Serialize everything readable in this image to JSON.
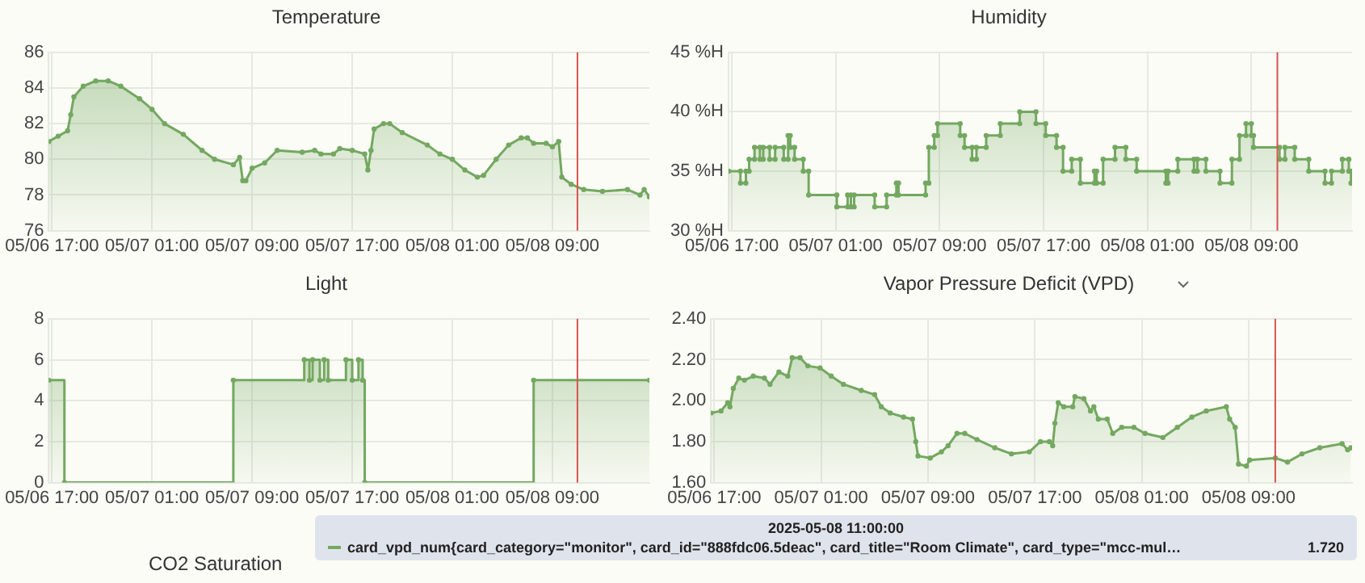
{
  "chart_data": [
    {
      "type": "area",
      "title": "Temperature",
      "grid": true,
      "marker": "circle",
      "xlim": [
        "2025-05-06T16:45",
        "2025-05-08T16:45"
      ],
      "xticks": [
        {
          "value": "2025-05-06T17:00",
          "label": "05/06 17:00"
        },
        {
          "value": "2025-05-07T01:00",
          "label": "05/07 01:00"
        },
        {
          "value": "2025-05-07T09:00",
          "label": "05/07 09:00"
        },
        {
          "value": "2025-05-07T17:00",
          "label": "05/07 17:00"
        },
        {
          "value": "2025-05-08T01:00",
          "label": "05/08 01:00"
        },
        {
          "value": "2025-05-08T09:00",
          "label": "05/08 09:00"
        }
      ],
      "ylim": [
        76,
        86
      ],
      "yticks": [
        76,
        78,
        80,
        82,
        84,
        86
      ],
      "ref_lines": [
        {
          "axis": "x",
          "value": "2025-05-08T11:00",
          "color": "#d9534f"
        }
      ],
      "series": [
        {
          "color": "#73a860",
          "x": [
            "2025-05-06T16:45",
            "2025-05-06T17:30",
            "2025-05-06T18:15",
            "2025-05-06T18:30",
            "2025-05-06T18:45",
            "2025-05-06T19:30",
            "2025-05-06T20:30",
            "2025-05-06T21:30",
            "2025-05-06T22:30",
            "2025-05-07T00:00",
            "2025-05-07T01:00",
            "2025-05-07T02:00",
            "2025-05-07T03:30",
            "2025-05-07T05:00",
            "2025-05-07T06:00",
            "2025-05-07T07:30",
            "2025-05-07T08:00",
            "2025-05-07T08:15",
            "2025-05-07T08:30",
            "2025-05-07T09:00",
            "2025-05-07T10:00",
            "2025-05-07T11:00",
            "2025-05-07T13:00",
            "2025-05-07T14:00",
            "2025-05-07T14:30",
            "2025-05-07T15:30",
            "2025-05-07T16:00",
            "2025-05-07T17:00",
            "2025-05-07T18:00",
            "2025-05-07T18:15",
            "2025-05-07T18:30",
            "2025-05-07T18:45",
            "2025-05-07T19:30",
            "2025-05-07T20:00",
            "2025-05-07T21:00",
            "2025-05-07T23:00",
            "2025-05-08T00:00",
            "2025-05-08T01:00",
            "2025-05-08T02:00",
            "2025-05-08T03:00",
            "2025-05-08T03:30",
            "2025-05-08T04:30",
            "2025-05-08T05:30",
            "2025-05-08T06:30",
            "2025-05-08T07:00",
            "2025-05-08T07:30",
            "2025-05-08T08:30",
            "2025-05-08T09:00",
            "2025-05-08T09:30",
            "2025-05-08T09:45",
            "2025-05-08T10:30",
            "2025-05-08T11:30",
            "2025-05-08T13:00",
            "2025-05-08T15:00",
            "2025-05-08T16:00",
            "2025-05-08T16:20",
            "2025-05-08T16:45"
          ],
          "values": [
            81.0,
            81.3,
            81.6,
            82.5,
            83.5,
            84.1,
            84.4,
            84.4,
            84.1,
            83.4,
            82.8,
            82.0,
            81.4,
            80.5,
            80.0,
            79.7,
            80.1,
            78.8,
            78.8,
            79.5,
            79.8,
            80.5,
            80.4,
            80.5,
            80.3,
            80.3,
            80.6,
            80.5,
            80.3,
            79.4,
            80.5,
            81.7,
            82.0,
            82.0,
            81.5,
            80.8,
            80.3,
            80.0,
            79.4,
            79.0,
            79.1,
            80.0,
            80.8,
            81.2,
            81.2,
            80.9,
            80.9,
            80.7,
            81.0,
            79.0,
            78.6,
            78.3,
            78.2,
            78.3,
            78.0,
            78.3,
            77.9
          ]
        }
      ]
    },
    {
      "type": "area",
      "title": "Humidity",
      "grid": true,
      "marker": "circle",
      "xlim": [
        "2025-05-06T16:45",
        "2025-05-08T16:45"
      ],
      "xticks": [
        {
          "value": "2025-05-06T17:00",
          "label": "05/06 17:00"
        },
        {
          "value": "2025-05-07T01:00",
          "label": "05/07 01:00"
        },
        {
          "value": "2025-05-07T09:00",
          "label": "05/07 09:00"
        },
        {
          "value": "2025-05-07T17:00",
          "label": "05/07 17:00"
        },
        {
          "value": "2025-05-08T01:00",
          "label": "05/08 01:00"
        },
        {
          "value": "2025-05-08T09:00",
          "label": "05/08 09:00"
        }
      ],
      "ylim": [
        30,
        45
      ],
      "yticks": [
        {
          "value": 30,
          "label": "30 %H"
        },
        {
          "value": 35,
          "label": "35 %H"
        },
        {
          "value": 40,
          "label": "40 %H"
        },
        {
          "value": 45,
          "label": "45 %H"
        }
      ],
      "ref_lines": [
        {
          "axis": "x",
          "value": "2025-05-08T11:00",
          "color": "#d9534f"
        }
      ],
      "series": [
        {
          "color": "#73a860",
          "x": [
            "2025-05-06T16:45",
            "2025-05-06T17:40",
            "2025-05-06T17:40",
            "2025-05-06T18:05",
            "2025-05-06T18:05",
            "2025-05-06T18:20",
            "2025-05-06T18:20",
            "2025-05-06T18:45",
            "2025-05-06T18:45",
            "2025-05-06T19:10",
            "2025-05-06T19:10",
            "2025-05-06T19:25",
            "2025-05-06T19:25",
            "2025-05-06T19:55",
            "2025-05-06T19:55",
            "2025-05-06T20:20",
            "2025-05-06T20:20",
            "2025-05-06T21:00",
            "2025-05-06T21:00",
            "2025-05-06T21:20",
            "2025-05-06T21:20",
            "2025-05-06T21:30",
            "2025-05-06T21:30",
            "2025-05-06T21:50",
            "2025-05-06T21:50",
            "2025-05-06T22:30",
            "2025-05-06T22:30",
            "2025-05-06T22:55",
            "2025-05-06T22:55",
            "2025-05-07T01:05",
            "2025-05-07T01:05",
            "2025-05-07T01:55",
            "2025-05-07T01:55",
            "2025-05-07T02:10",
            "2025-05-07T02:10",
            "2025-05-07T02:25",
            "2025-05-07T02:25",
            "2025-05-07T04:00",
            "2025-05-07T04:00",
            "2025-05-07T04:55",
            "2025-05-07T04:55",
            "2025-05-07T05:40",
            "2025-05-07T05:40",
            "2025-05-07T05:50",
            "2025-05-07T05:50",
            "2025-05-07T07:55",
            "2025-05-07T07:55",
            "2025-05-07T08:10",
            "2025-05-07T08:10",
            "2025-05-07T08:35",
            "2025-05-07T08:35",
            "2025-05-07T08:50",
            "2025-05-07T08:50",
            "2025-05-07T10:35",
            "2025-05-07T10:35",
            "2025-05-07T10:55",
            "2025-05-07T10:55",
            "2025-05-07T11:30",
            "2025-05-07T11:30",
            "2025-05-07T11:50",
            "2025-05-07T11:50",
            "2025-05-07T12:35",
            "2025-05-07T12:35",
            "2025-05-07T13:40",
            "2025-05-07T13:40",
            "2025-05-07T15:10",
            "2025-05-07T15:10",
            "2025-05-07T16:25",
            "2025-05-07T16:25",
            "2025-05-07T17:10",
            "2025-05-07T17:10",
            "2025-05-07T18:00",
            "2025-05-07T18:00",
            "2025-05-07T18:30",
            "2025-05-07T18:30",
            "2025-05-07T19:10",
            "2025-05-07T19:10",
            "2025-05-07T19:50",
            "2025-05-07T19:50",
            "2025-05-07T20:55",
            "2025-05-07T20:55",
            "2025-05-07T21:05",
            "2025-05-07T21:05",
            "2025-05-07T21:35",
            "2025-05-07T21:35",
            "2025-05-07T22:30",
            "2025-05-07T22:30",
            "2025-05-07T23:20",
            "2025-05-07T23:20",
            "2025-05-08T00:10",
            "2025-05-08T00:10",
            "2025-05-08T02:25",
            "2025-05-08T02:25",
            "2025-05-08T02:35",
            "2025-05-08T02:35",
            "2025-05-08T03:20",
            "2025-05-08T03:20",
            "2025-05-08T04:35",
            "2025-05-08T04:35",
            "2025-05-08T04:50",
            "2025-05-08T04:50",
            "2025-05-08T05:30",
            "2025-05-08T05:30",
            "2025-05-08T06:35",
            "2025-05-08T06:35",
            "2025-05-08T07:30",
            "2025-05-08T07:30",
            "2025-05-08T08:05",
            "2025-05-08T08:05",
            "2025-05-08T08:35",
            "2025-05-08T08:35",
            "2025-05-08T09:00",
            "2025-05-08T09:00",
            "2025-05-08T09:10",
            "2025-05-08T09:10",
            "2025-05-08T11:10",
            "2025-05-08T11:10",
            "2025-05-08T11:35",
            "2025-05-08T11:35",
            "2025-05-08T12:20",
            "2025-05-08T12:20",
            "2025-05-08T13:25",
            "2025-05-08T13:25",
            "2025-05-08T14:40",
            "2025-05-08T14:40",
            "2025-05-08T15:10",
            "2025-05-08T15:10",
            "2025-05-08T16:00",
            "2025-05-08T16:00",
            "2025-05-08T16:30",
            "2025-05-08T16:30",
            "2025-05-08T16:40",
            "2025-05-08T16:40",
            "2025-05-08T16:45"
          ],
          "values": [
            35,
            35,
            34,
            34,
            35,
            35,
            36,
            36,
            37,
            37,
            36,
            36,
            37,
            37,
            36,
            36,
            37,
            37,
            36,
            36,
            38,
            38,
            37,
            37,
            36,
            36,
            35,
            35,
            33,
            33,
            32,
            32,
            33,
            33,
            32,
            32,
            33,
            33,
            32,
            32,
            33,
            33,
            34,
            34,
            33,
            33,
            34,
            34,
            37,
            37,
            38,
            38,
            39,
            39,
            38,
            38,
            37,
            37,
            36,
            36,
            37,
            37,
            38,
            38,
            39,
            39,
            40,
            40,
            39,
            39,
            38,
            38,
            37,
            37,
            35,
            35,
            36,
            36,
            34,
            34,
            35,
            35,
            34,
            34,
            36,
            36,
            37,
            37,
            36,
            36,
            35,
            35,
            34,
            34,
            35,
            35,
            36,
            36,
            35,
            35,
            36,
            36,
            35,
            35,
            34,
            34,
            36,
            36,
            38,
            38,
            39,
            39,
            38,
            38,
            37,
            37,
            36,
            36,
            37,
            37,
            36,
            36,
            35,
            35,
            34,
            34,
            35,
            35,
            36,
            36,
            35,
            35,
            34,
            34
          ]
        }
      ]
    },
    {
      "type": "step",
      "title": "Light",
      "grid": true,
      "marker": "circle",
      "xlim": [
        "2025-05-06T16:45",
        "2025-05-08T16:45"
      ],
      "xticks": [
        {
          "value": "2025-05-06T17:00",
          "label": "05/06 17:00"
        },
        {
          "value": "2025-05-07T01:00",
          "label": "05/07 01:00"
        },
        {
          "value": "2025-05-07T09:00",
          "label": "05/07 09:00"
        },
        {
          "value": "2025-05-07T17:00",
          "label": "05/07 17:00"
        },
        {
          "value": "2025-05-08T01:00",
          "label": "05/08 01:00"
        },
        {
          "value": "2025-05-08T09:00",
          "label": "05/08 09:00"
        }
      ],
      "ylim": [
        0,
        8
      ],
      "yticks": [
        0,
        2,
        4,
        6,
        8
      ],
      "ref_lines": [
        {
          "axis": "x",
          "value": "2025-05-08T11:00",
          "color": "#d9534f"
        }
      ],
      "series": [
        {
          "color": "#73a860",
          "x": [
            "2025-05-06T16:45",
            "2025-05-06T18:00",
            "2025-05-07T07:30",
            "2025-05-07T13:10",
            "2025-05-07T13:35",
            "2025-05-07T13:50",
            "2025-05-07T14:25",
            "2025-05-07T14:45",
            "2025-05-07T15:05",
            "2025-05-07T16:30",
            "2025-05-07T17:00",
            "2025-05-07T17:30",
            "2025-05-07T17:50",
            "2025-05-07T18:00",
            "2025-05-08T07:30",
            "2025-05-08T16:45"
          ],
          "values": [
            5,
            0,
            5,
            6,
            5,
            6,
            5,
            6,
            5,
            6,
            5,
            6,
            5,
            0,
            5,
            5
          ]
        }
      ]
    },
    {
      "type": "area",
      "title": "Vapor Pressure Deficit (VPD)",
      "grid": true,
      "marker": "circle",
      "legend": "bottom",
      "xlim": [
        "2025-05-06T16:45",
        "2025-05-08T16:45"
      ],
      "xticks": [
        {
          "value": "2025-05-06T17:00",
          "label": "05/06 17:00"
        },
        {
          "value": "2025-05-07T01:00",
          "label": "05/07 01:00"
        },
        {
          "value": "2025-05-07T09:00",
          "label": "05/07 09:00"
        },
        {
          "value": "2025-05-07T17:00",
          "label": "05/07 17:00"
        },
        {
          "value": "2025-05-08T01:00",
          "label": "05/08 01:00"
        },
        {
          "value": "2025-05-08T09:00",
          "label": "05/08 09:00"
        }
      ],
      "ylim": [
        1.6,
        2.4
      ],
      "yticks": [
        {
          "value": 1.6,
          "label": "1.60"
        },
        {
          "value": 1.8,
          "label": "1.80"
        },
        {
          "value": 2.0,
          "label": "2.00"
        },
        {
          "value": 2.2,
          "label": "2.20"
        },
        {
          "value": 2.4,
          "label": "2.40"
        }
      ],
      "ref_lines": [
        {
          "axis": "x",
          "value": "2025-05-08T11:00",
          "color": "#d9534f"
        }
      ],
      "annotations": [
        "2025-05-08 11:00:00",
        "1.720"
      ],
      "series": [
        {
          "name": "card_vpd_num{card_category=\"monitor\", card_id=\"888fdc06.5deac\", card_title=\"Room Climate\", card_type=\"mcc-mul…",
          "color": "#73a860",
          "x": [
            "2025-05-06T16:45",
            "2025-05-06T17:30",
            "2025-05-06T18:00",
            "2025-05-06T18:10",
            "2025-05-06T18:25",
            "2025-05-06T18:50",
            "2025-05-06T19:15",
            "2025-05-06T19:55",
            "2025-05-06T20:45",
            "2025-05-06T21:10",
            "2025-05-06T21:50",
            "2025-05-06T22:30",
            "2025-05-06T22:50",
            "2025-05-06T23:25",
            "2025-05-07T00:00",
            "2025-05-07T00:55",
            "2025-05-07T01:45",
            "2025-05-07T02:40",
            "2025-05-07T04:00",
            "2025-05-07T05:00",
            "2025-05-07T05:30",
            "2025-05-07T06:10",
            "2025-05-07T07:10",
            "2025-05-07T07:50",
            "2025-05-07T08:05",
            "2025-05-07T08:15",
            "2025-05-07T09:10",
            "2025-05-07T10:00",
            "2025-05-07T10:30",
            "2025-05-07T11:10",
            "2025-05-07T11:45",
            "2025-05-07T12:40",
            "2025-05-07T14:00",
            "2025-05-07T15:15",
            "2025-05-07T16:35",
            "2025-05-07T17:25",
            "2025-05-07T18:05",
            "2025-05-07T18:20",
            "2025-05-07T18:30",
            "2025-05-07T18:45",
            "2025-05-07T19:10",
            "2025-05-07T19:50",
            "2025-05-07T20:00",
            "2025-05-07T20:40",
            "2025-05-07T21:10",
            "2025-05-07T21:25",
            "2025-05-07T21:45",
            "2025-05-07T22:25",
            "2025-05-07T22:50",
            "2025-05-07T23:30",
            "2025-05-08T00:25",
            "2025-05-08T01:15",
            "2025-05-08T02:35",
            "2025-05-08T03:40",
            "2025-05-08T04:45",
            "2025-05-08T05:50",
            "2025-05-08T07:20",
            "2025-05-08T07:35",
            "2025-05-08T08:00",
            "2025-05-08T08:15",
            "2025-05-08T08:50",
            "2025-05-08T09:05",
            "2025-05-08T11:00",
            "2025-05-08T11:55",
            "2025-05-08T13:00",
            "2025-05-08T14:20",
            "2025-05-08T16:00",
            "2025-05-08T16:25",
            "2025-05-08T16:40"
          ],
          "values": [
            1.94,
            1.95,
            1.99,
            1.97,
            2.06,
            2.11,
            2.1,
            2.12,
            2.11,
            2.08,
            2.14,
            2.12,
            2.21,
            2.21,
            2.17,
            2.16,
            2.12,
            2.08,
            2.05,
            2.03,
            1.97,
            1.94,
            1.92,
            1.91,
            1.8,
            1.73,
            1.72,
            1.75,
            1.78,
            1.84,
            1.84,
            1.81,
            1.77,
            1.74,
            1.75,
            1.8,
            1.8,
            1.78,
            1.89,
            1.99,
            1.97,
            1.97,
            2.02,
            2.01,
            1.95,
            1.97,
            1.91,
            1.91,
            1.84,
            1.87,
            1.87,
            1.84,
            1.82,
            1.87,
            1.92,
            1.95,
            1.97,
            1.91,
            1.87,
            1.69,
            1.68,
            1.71,
            1.72,
            1.7,
            1.74,
            1.77,
            1.79,
            1.76,
            1.77
          ]
        }
      ]
    },
    {
      "type": "other",
      "title": "CO2 Saturation"
    }
  ]
}
